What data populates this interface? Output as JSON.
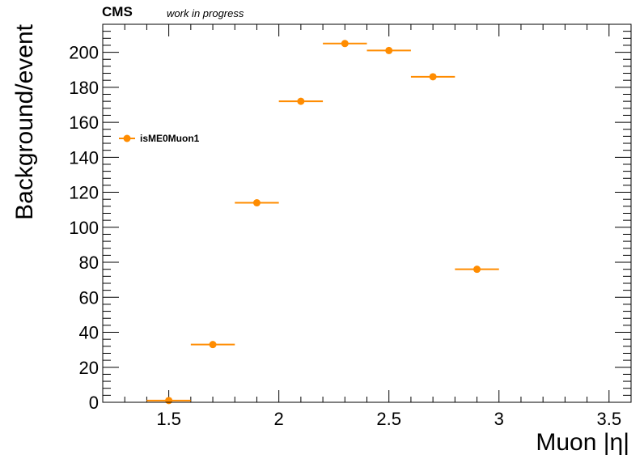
{
  "header": {
    "experiment": "CMS",
    "status": "work in progress"
  },
  "chart_data": {
    "type": "scatter",
    "xlabel": "Muon |η|",
    "ylabel": "Background/event",
    "xlim": [
      1.2,
      3.6
    ],
    "ylim": [
      0,
      216
    ],
    "x_ticks": [
      1.5,
      2,
      2.5,
      3,
      3.5
    ],
    "x_tick_labels": [
      "1.5",
      "2",
      "2.5",
      "3",
      "3.5"
    ],
    "y_ticks": [
      0,
      20,
      40,
      60,
      80,
      100,
      120,
      140,
      160,
      180,
      200
    ],
    "y_tick_labels": [
      "0",
      "20",
      "40",
      "60",
      "80",
      "100",
      "120",
      "140",
      "160",
      "180",
      "200"
    ],
    "series": [
      {
        "name": "isME0Muon1",
        "color": "#ff8c00",
        "x": [
          1.5,
          1.7,
          1.9,
          2.1,
          2.3,
          2.5,
          2.7,
          2.9
        ],
        "y": [
          1,
          33,
          114,
          172,
          205,
          201,
          186,
          76
        ],
        "x_err": [
          0.1,
          0.1,
          0.1,
          0.1,
          0.1,
          0.1,
          0.1,
          0.1
        ]
      }
    ],
    "legend_position": "upper-left",
    "grid": false
  }
}
